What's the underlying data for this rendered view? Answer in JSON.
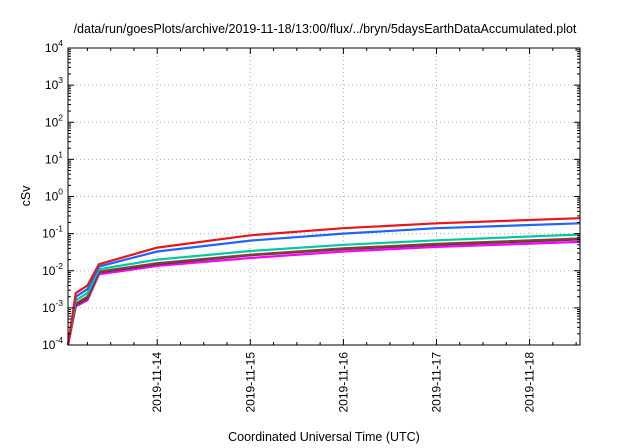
{
  "chart_data": {
    "type": "line",
    "title": "/data/run/goesPlots/archive/2019-11-18/13:00/flux/../bryn/5daysEarthDataAccumulated.plot",
    "xlabel": "Coordinated Universal Time (UTC)",
    "ylabel": "cSv",
    "yscale": "log",
    "ylim": [
      0.0001,
      10000
    ],
    "xlim": [
      "2019-11-13T01:00",
      "2019-11-18T13:00"
    ],
    "grid": true,
    "legend": "none",
    "xticks": [
      "2019-11-14",
      "2019-11-15",
      "2019-11-16",
      "2019-11-17",
      "2019-11-18"
    ],
    "yticks": [
      {
        "value": 0.0001,
        "base": "10",
        "exp": "-4"
      },
      {
        "value": 0.001,
        "base": "10",
        "exp": "-3"
      },
      {
        "value": 0.01,
        "base": "10",
        "exp": "-2"
      },
      {
        "value": 0.1,
        "base": "10",
        "exp": "-1"
      },
      {
        "value": 1,
        "base": "10",
        "exp": "0"
      },
      {
        "value": 10,
        "base": "10",
        "exp": "1"
      },
      {
        "value": 100,
        "base": "10",
        "exp": "2"
      },
      {
        "value": 1000,
        "base": "10",
        "exp": "3"
      },
      {
        "value": 10000,
        "base": "10",
        "exp": "4"
      }
    ],
    "series": [
      {
        "color": "#ff00ff",
        "x": [
          "2019-11-13T01:00",
          "2019-11-13T03:00",
          "2019-11-13T06:00",
          "2019-11-13T09:00",
          "2019-11-14T00:00",
          "2019-11-15T00:00",
          "2019-11-16T00:00",
          "2019-11-17T00:00",
          "2019-11-18T13:00"
        ],
        "y": [
          0.0001,
          0.0011,
          0.0016,
          0.008,
          0.0135,
          0.022,
          0.033,
          0.044,
          0.06
        ]
      },
      {
        "color": "#404040",
        "x": [
          "2019-11-13T01:00",
          "2019-11-13T03:00",
          "2019-11-13T06:00",
          "2019-11-13T09:00",
          "2019-11-14T00:00",
          "2019-11-15T00:00",
          "2019-11-16T00:00",
          "2019-11-17T00:00",
          "2019-11-18T13:00"
        ],
        "y": [
          0.0001,
          0.0012,
          0.0018,
          0.009,
          0.015,
          0.026,
          0.038,
          0.05,
          0.07
        ]
      },
      {
        "color": "#8b3a3a",
        "x": [
          "2019-11-13T01:00",
          "2019-11-13T03:00",
          "2019-11-13T06:00",
          "2019-11-13T09:00",
          "2019-11-14T00:00",
          "2019-11-15T00:00",
          "2019-11-16T00:00",
          "2019-11-17T00:00",
          "2019-11-18T13:00"
        ],
        "y": [
          0.0001,
          0.0013,
          0.002,
          0.0095,
          0.016,
          0.027,
          0.04,
          0.053,
          0.074
        ]
      },
      {
        "color": "#00c8a0",
        "x": [
          "2019-11-13T01:00",
          "2019-11-13T03:00",
          "2019-11-13T06:00",
          "2019-11-13T09:00",
          "2019-11-14T00:00",
          "2019-11-15T00:00",
          "2019-11-16T00:00",
          "2019-11-17T00:00",
          "2019-11-18T13:00"
        ],
        "y": [
          0.0001,
          0.0016,
          0.0025,
          0.011,
          0.02,
          0.034,
          0.05,
          0.066,
          0.095
        ]
      },
      {
        "color": "#1e64ff",
        "x": [
          "2019-11-13T01:00",
          "2019-11-13T03:00",
          "2019-11-13T06:00",
          "2019-11-13T09:00",
          "2019-11-14T00:00",
          "2019-11-15T00:00",
          "2019-11-16T00:00",
          "2019-11-17T00:00",
          "2019-11-18T13:00"
        ],
        "y": [
          0.0001,
          0.002,
          0.0032,
          0.013,
          0.033,
          0.065,
          0.1,
          0.14,
          0.19
        ]
      },
      {
        "color": "#e8151b",
        "x": [
          "2019-11-13T01:00",
          "2019-11-13T03:00",
          "2019-11-13T06:00",
          "2019-11-13T09:00",
          "2019-11-14T00:00",
          "2019-11-15T00:00",
          "2019-11-16T00:00",
          "2019-11-17T00:00",
          "2019-11-18T13:00"
        ],
        "y": [
          0.0001,
          0.0025,
          0.004,
          0.015,
          0.042,
          0.09,
          0.14,
          0.19,
          0.26
        ]
      }
    ]
  }
}
